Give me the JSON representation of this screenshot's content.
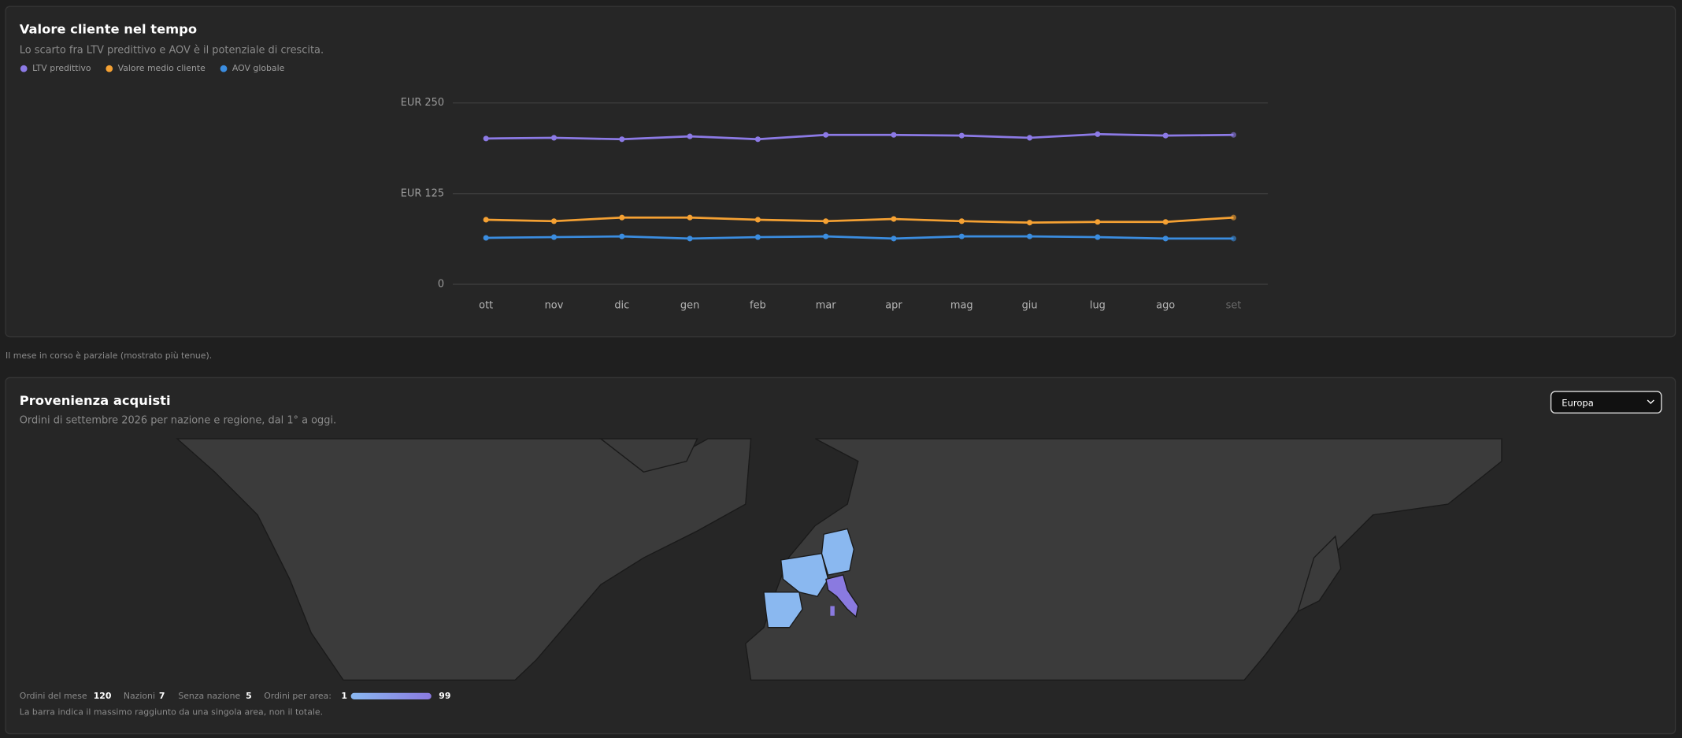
{
  "chart_data": {
    "type": "line",
    "title": "Valore cliente nel tempo",
    "subtitle": "Lo scarto fra LTV predittivo e AOV è il potenziale di crescita.",
    "categories": [
      "ott",
      "nov",
      "dic",
      "gen",
      "feb",
      "mar",
      "apr",
      "mag",
      "giu",
      "lug",
      "ago",
      "set"
    ],
    "series": [
      {
        "name": "LTV predittivo",
        "color": "#8c7ae6",
        "values": [
          201,
          202,
          200,
          204,
          200,
          206,
          206,
          205,
          202,
          207,
          205,
          206
        ]
      },
      {
        "name": "Valore medio cliente",
        "color": "#f5a133",
        "values": [
          89,
          87,
          92,
          92,
          89,
          87,
          90,
          87,
          85,
          86,
          86,
          92
        ]
      },
      {
        "name": "AOV globale",
        "color": "#3b8de0",
        "values": [
          64,
          65,
          66,
          63,
          65,
          66,
          63,
          66,
          66,
          65,
          63,
          63
        ]
      }
    ],
    "ylim": [
      0,
      250
    ],
    "yticks": [
      0,
      {
        "value": 125,
        "label": "EUR 125"
      },
      {
        "value": 250,
        "label": "EUR 250"
      }
    ],
    "grid": true
  },
  "note": "Il mese in corso è parziale (mostrato più tenue).",
  "map_panel": {
    "title": "Provenienza acquisti",
    "subtitle": "Ordini di settembre 2026 per nazione e regione, dal 1° a oggi.",
    "region_select": "Europa",
    "stats": [
      {
        "label": "Ordini del mese",
        "value": 120
      },
      {
        "label": "Nazioni",
        "value": 7
      },
      {
        "label": "Senza nazione",
        "value": 5
      }
    ],
    "scale_label": "Ordini per area:",
    "scale_min": 1,
    "scale_max": 99,
    "footnote": "La barra indica il massimo raggiunto da una singola area, non il totale."
  }
}
